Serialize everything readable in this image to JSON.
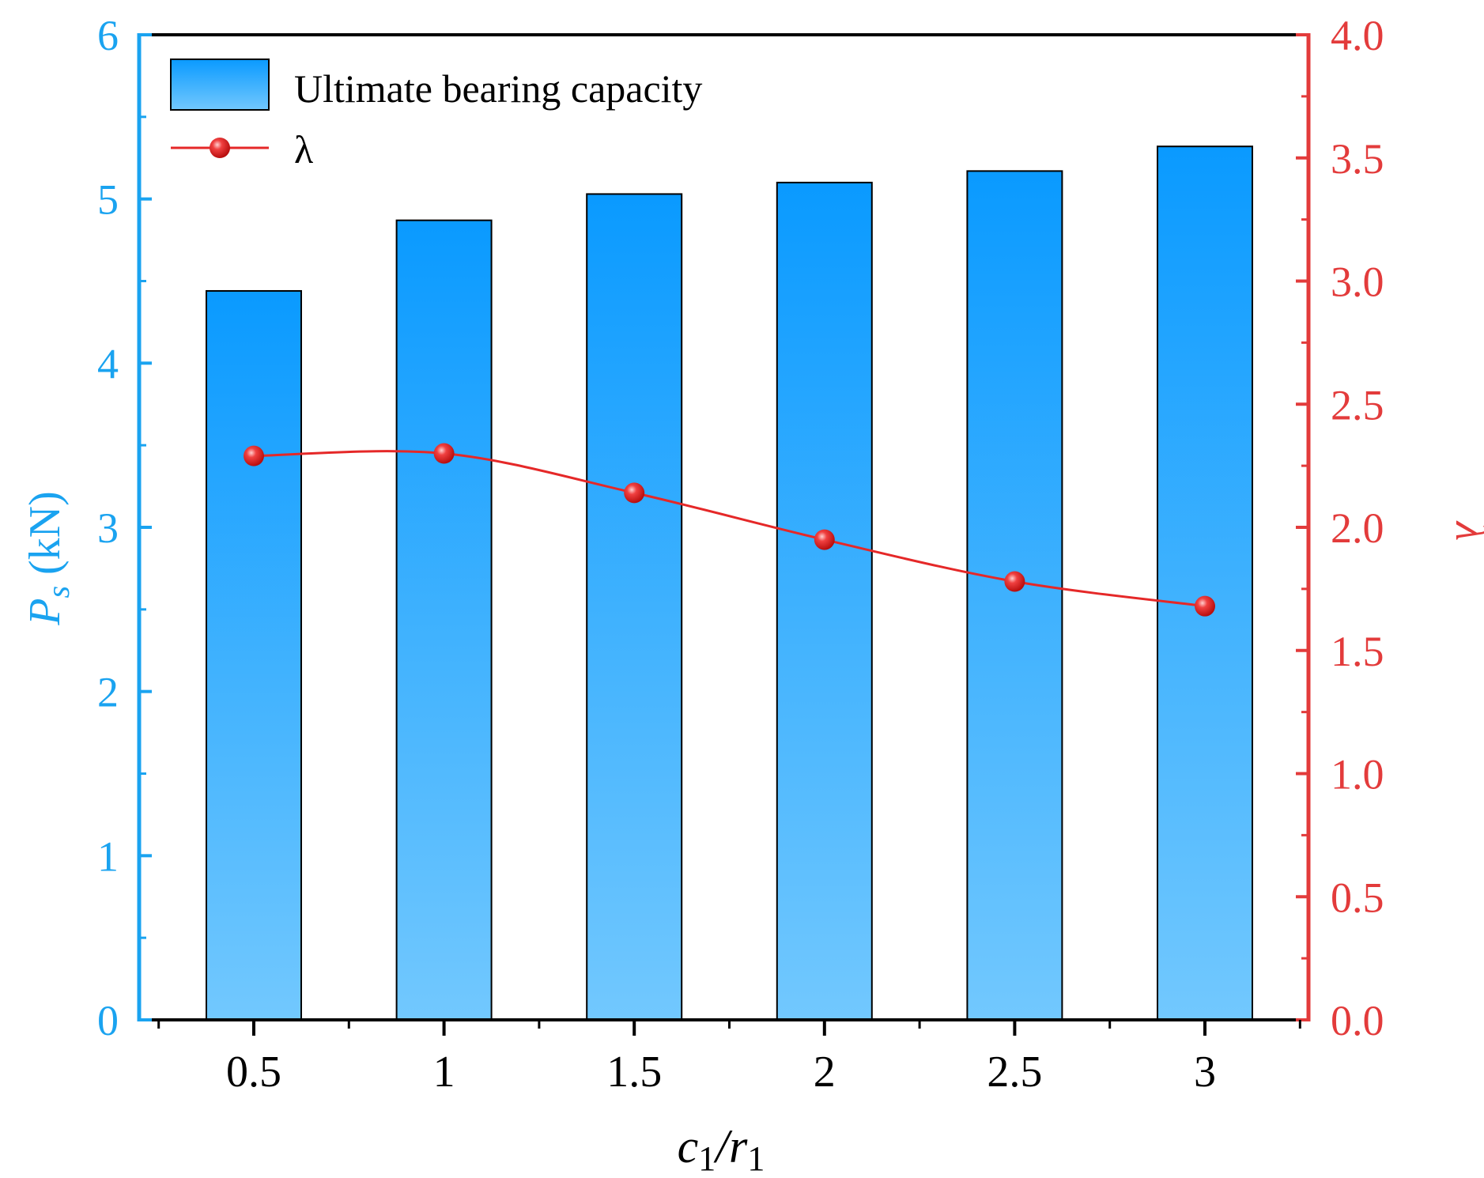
{
  "chart_data": {
    "type": "bar+line",
    "categories": [
      "0.5",
      "1",
      "1.5",
      "2",
      "2.5",
      "3"
    ],
    "series": [
      {
        "name": "Ultimate bearing capacity",
        "kind": "bar",
        "axis": "left",
        "values": [
          4.44,
          4.87,
          5.03,
          5.1,
          5.17,
          5.32
        ]
      },
      {
        "name": "λ",
        "kind": "line",
        "axis": "right",
        "values": [
          2.29,
          2.3,
          2.14,
          1.95,
          1.78,
          1.68
        ]
      }
    ],
    "xlabel": {
      "main": "c",
      "sub1": "1",
      "slash": "/r",
      "sub2": "1"
    },
    "ylabel_left": {
      "main": "P",
      "sub": "s",
      "unit": " (kN)"
    },
    "ylabel_right": "λ",
    "ylim_left": [
      0,
      6
    ],
    "ylim_right": [
      0,
      4
    ],
    "yticks_left": [
      "0",
      "1",
      "2",
      "3",
      "4",
      "5",
      "6"
    ],
    "yticks_right": [
      "0.0",
      "0.5",
      "1.0",
      "1.5",
      "2.0",
      "2.5",
      "3.0",
      "3.5",
      "4.0"
    ],
    "legend": {
      "position": "top-left",
      "items": [
        "Ultimate bearing capacity",
        "λ"
      ]
    },
    "colors": {
      "bar_top": "#0a9aff",
      "bar_bottom": "#72c8fe",
      "left_axis": "#1aa3f0",
      "right_axis": "#e33b3b",
      "line": "#e52828",
      "frame": "#000000"
    }
  }
}
